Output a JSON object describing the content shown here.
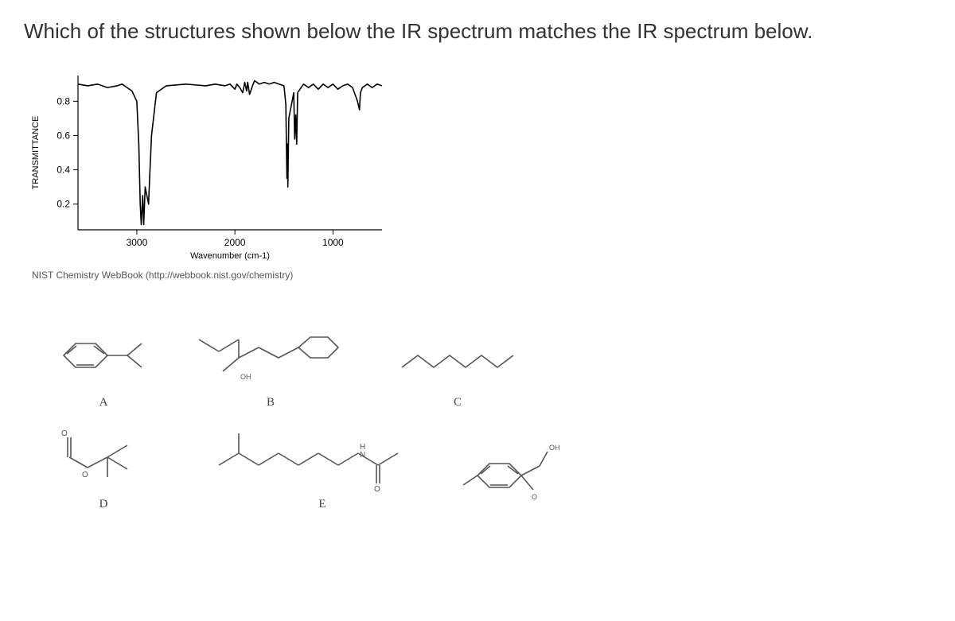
{
  "question": "Which of the structures shown below the IR spectrum matches the IR spectrum below.",
  "chart": {
    "type": "line",
    "ylabel": "TRANSMITTANCE",
    "xlabel": "Wavenumber (cm-1)",
    "source": "NIST Chemistry WebBook (http://webbook.nist.gov/chemistry)",
    "ylim": [
      0.05,
      0.95
    ],
    "yticks": [
      0.2,
      0.4,
      0.6,
      0.8
    ],
    "xlim": [
      3600,
      500
    ],
    "xticks": [
      3000,
      2000,
      1000
    ],
    "xtick_labels": [
      "3000",
      "2000",
      "1000"
    ],
    "line_color": "#000000",
    "line_width": 1.6,
    "axis_color": "#000000",
    "axis_width": 1.2,
    "tick_fontsize": 12,
    "label_fontsize": 11,
    "background_color": "#ffffff",
    "series": [
      [
        3600,
        0.9
      ],
      [
        3500,
        0.89
      ],
      [
        3400,
        0.9
      ],
      [
        3300,
        0.88
      ],
      [
        3200,
        0.89
      ],
      [
        3150,
        0.9
      ],
      [
        3100,
        0.88
      ],
      [
        3050,
        0.86
      ],
      [
        3000,
        0.8
      ],
      [
        2980,
        0.55
      ],
      [
        2965,
        0.2
      ],
      [
        2955,
        0.08
      ],
      [
        2940,
        0.25
      ],
      [
        2930,
        0.08
      ],
      [
        2915,
        0.3
      ],
      [
        2880,
        0.2
      ],
      [
        2870,
        0.35
      ],
      [
        2850,
        0.6
      ],
      [
        2800,
        0.85
      ],
      [
        2700,
        0.89
      ],
      [
        2500,
        0.9
      ],
      [
        2300,
        0.89
      ],
      [
        2200,
        0.9
      ],
      [
        2100,
        0.89
      ],
      [
        2050,
        0.9
      ],
      [
        2000,
        0.87
      ],
      [
        1980,
        0.9
      ],
      [
        1950,
        0.88
      ],
      [
        1920,
        0.85
      ],
      [
        1900,
        0.91
      ],
      [
        1880,
        0.86
      ],
      [
        1870,
        0.91
      ],
      [
        1850,
        0.84
      ],
      [
        1820,
        0.89
      ],
      [
        1800,
        0.92
      ],
      [
        1750,
        0.9
      ],
      [
        1700,
        0.91
      ],
      [
        1650,
        0.9
      ],
      [
        1600,
        0.91
      ],
      [
        1550,
        0.9
      ],
      [
        1500,
        0.89
      ],
      [
        1480,
        0.78
      ],
      [
        1470,
        0.35
      ],
      [
        1465,
        0.55
      ],
      [
        1460,
        0.3
      ],
      [
        1450,
        0.7
      ],
      [
        1400,
        0.85
      ],
      [
        1390,
        0.58
      ],
      [
        1380,
        0.72
      ],
      [
        1370,
        0.55
      ],
      [
        1360,
        0.85
      ],
      [
        1300,
        0.9
      ],
      [
        1250,
        0.88
      ],
      [
        1200,
        0.9
      ],
      [
        1150,
        0.87
      ],
      [
        1100,
        0.9
      ],
      [
        1050,
        0.88
      ],
      [
        1000,
        0.9
      ],
      [
        950,
        0.87
      ],
      [
        900,
        0.89
      ],
      [
        850,
        0.9
      ],
      [
        800,
        0.88
      ],
      [
        750,
        0.8
      ],
      [
        730,
        0.75
      ],
      [
        720,
        0.85
      ],
      [
        700,
        0.88
      ],
      [
        650,
        0.9
      ],
      [
        600,
        0.88
      ],
      [
        550,
        0.9
      ],
      [
        500,
        0.89
      ]
    ]
  },
  "options": {
    "A": "A",
    "B": "B",
    "C": "C",
    "D": "D",
    "E": "E",
    "oh_label": "OH"
  },
  "colors": {
    "mol_line": "#555555",
    "text": "#333333"
  }
}
